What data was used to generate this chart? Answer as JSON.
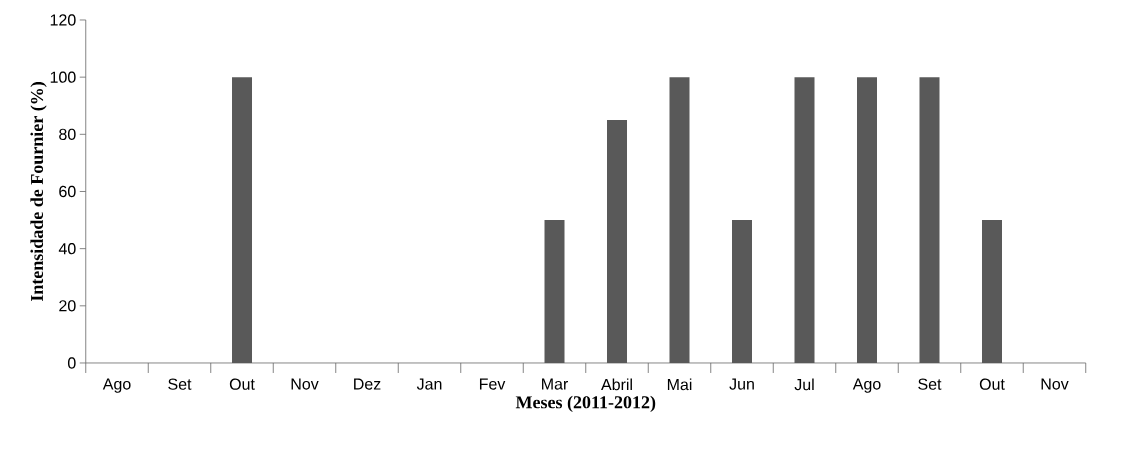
{
  "chart_data": {
    "type": "bar",
    "xlabel": "Meses (2011-2012)",
    "ylabel": "Intensidade de Fournier (%)",
    "categories": [
      "Ago",
      "Set",
      "Out",
      "Nov",
      "Dez",
      "Jan",
      "Fev",
      "Mar",
      "Abril",
      "Mai",
      "Jun",
      "Jul",
      "Ago",
      "Set",
      "Out",
      "Nov"
    ],
    "values": [
      0,
      0,
      100,
      0,
      0,
      0,
      0,
      50,
      85,
      100,
      50,
      100,
      100,
      100,
      50,
      0
    ],
    "color": "#595959",
    "ylim": [
      0,
      120
    ],
    "yticks": [
      0,
      20,
      40,
      60,
      80,
      100,
      120
    ]
  }
}
